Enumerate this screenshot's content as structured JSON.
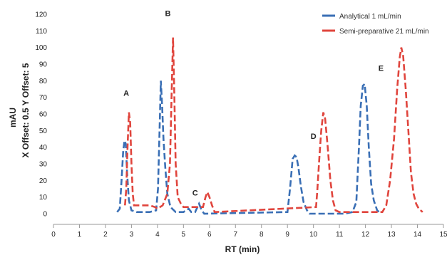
{
  "chart_data": {
    "type": "line",
    "xlabel": "RT (min)",
    "ylabel_lines": [
      "mAU",
      "X Offset: 0.5   Y Offset: 5"
    ],
    "xlim": [
      0,
      15
    ],
    "ylim": [
      0,
      120
    ],
    "x_ticks": [
      0,
      1,
      2,
      3,
      4,
      5,
      6,
      7,
      8,
      9,
      10,
      11,
      12,
      13,
      14,
      15
    ],
    "y_ticks": [
      0,
      10,
      20,
      30,
      40,
      50,
      60,
      70,
      80,
      90,
      100,
      110,
      120
    ],
    "grid": false,
    "legend_position": "top-right",
    "series": [
      {
        "name": "Analytical 1 mL/min",
        "color": "#3a6fb5",
        "points": [
          [
            2.45,
            1
          ],
          [
            2.55,
            3
          ],
          [
            2.62,
            20
          ],
          [
            2.68,
            37
          ],
          [
            2.73,
            44
          ],
          [
            2.78,
            42
          ],
          [
            2.83,
            25
          ],
          [
            2.9,
            8
          ],
          [
            3.0,
            2
          ],
          [
            3.2,
            1
          ],
          [
            3.7,
            1
          ],
          [
            3.95,
            2
          ],
          [
            4.02,
            15
          ],
          [
            4.08,
            50
          ],
          [
            4.13,
            80
          ],
          [
            4.18,
            65
          ],
          [
            4.23,
            45
          ],
          [
            4.3,
            28
          ],
          [
            4.38,
            12
          ],
          [
            4.5,
            4
          ],
          [
            4.7,
            1
          ],
          [
            5.0,
            1
          ],
          [
            5.2,
            3
          ],
          [
            5.3,
            1
          ],
          [
            5.45,
            1
          ],
          [
            5.6,
            6
          ],
          [
            5.7,
            2
          ],
          [
            5.8,
            0
          ],
          [
            9.0,
            1
          ],
          [
            9.1,
            15
          ],
          [
            9.2,
            33
          ],
          [
            9.28,
            35
          ],
          [
            9.35,
            34
          ],
          [
            9.42,
            28
          ],
          [
            9.52,
            16
          ],
          [
            9.62,
            7
          ],
          [
            9.75,
            2
          ],
          [
            9.85,
            0
          ],
          [
            11.2,
            0
          ],
          [
            11.5,
            1
          ],
          [
            11.65,
            7
          ],
          [
            11.75,
            40
          ],
          [
            11.82,
            65
          ],
          [
            11.9,
            77
          ],
          [
            11.97,
            78
          ],
          [
            12.05,
            65
          ],
          [
            12.13,
            40
          ],
          [
            12.22,
            18
          ],
          [
            12.32,
            8
          ],
          [
            12.45,
            2
          ],
          [
            12.6,
            0
          ]
        ]
      },
      {
        "name": "Semi-preparative 21 mL/min",
        "color": "#e0453d",
        "points": [
          [
            3.1,
            5
          ],
          [
            3.5,
            5
          ],
          [
            3.7,
            5
          ],
          [
            3.9,
            4
          ],
          [
            4.0,
            3
          ],
          [
            4.2,
            5
          ],
          [
            4.38,
            12
          ],
          [
            4.48,
            30
          ],
          [
            4.55,
            75
          ],
          [
            4.6,
            106
          ],
          [
            4.65,
            70
          ],
          [
            4.7,
            30
          ],
          [
            4.78,
            10
          ],
          [
            4.9,
            6
          ],
          [
            5.0,
            4
          ],
          [
            2.75,
            5
          ],
          [
            2.8,
            15
          ],
          [
            2.85,
            40
          ],
          [
            2.9,
            61
          ],
          [
            2.95,
            55
          ],
          [
            3.0,
            30
          ],
          [
            3.05,
            12
          ],
          [
            5.75,
            4
          ],
          [
            5.85,
            10
          ],
          [
            5.92,
            13
          ],
          [
            6.0,
            10
          ],
          [
            6.1,
            5
          ],
          [
            6.2,
            1
          ],
          [
            10.1,
            4
          ],
          [
            10.15,
            14
          ],
          [
            10.22,
            32
          ],
          [
            10.3,
            50
          ],
          [
            10.38,
            61
          ],
          [
            10.45,
            57
          ],
          [
            10.55,
            40
          ],
          [
            10.65,
            20
          ],
          [
            10.75,
            8
          ],
          [
            10.85,
            2
          ],
          [
            11.0,
            1
          ],
          [
            12.65,
            1
          ],
          [
            12.8,
            5
          ],
          [
            12.95,
            20
          ],
          [
            13.1,
            45
          ],
          [
            13.22,
            75
          ],
          [
            13.32,
            94
          ],
          [
            13.38,
            100
          ],
          [
            13.45,
            95
          ],
          [
            13.55,
            75
          ],
          [
            13.65,
            50
          ],
          [
            13.75,
            25
          ],
          [
            13.85,
            12
          ],
          [
            13.95,
            6
          ],
          [
            14.05,
            3
          ],
          [
            14.2,
            1
          ]
        ]
      }
    ],
    "peak_labels": [
      {
        "text": "A",
        "x": 2.8,
        "y": 71
      },
      {
        "text": "B",
        "x": 4.4,
        "y": 119
      },
      {
        "text": "C",
        "x": 5.45,
        "y": 11
      },
      {
        "text": "D",
        "x": 10.0,
        "y": 45
      },
      {
        "text": "E",
        "x": 12.6,
        "y": 86
      }
    ]
  }
}
